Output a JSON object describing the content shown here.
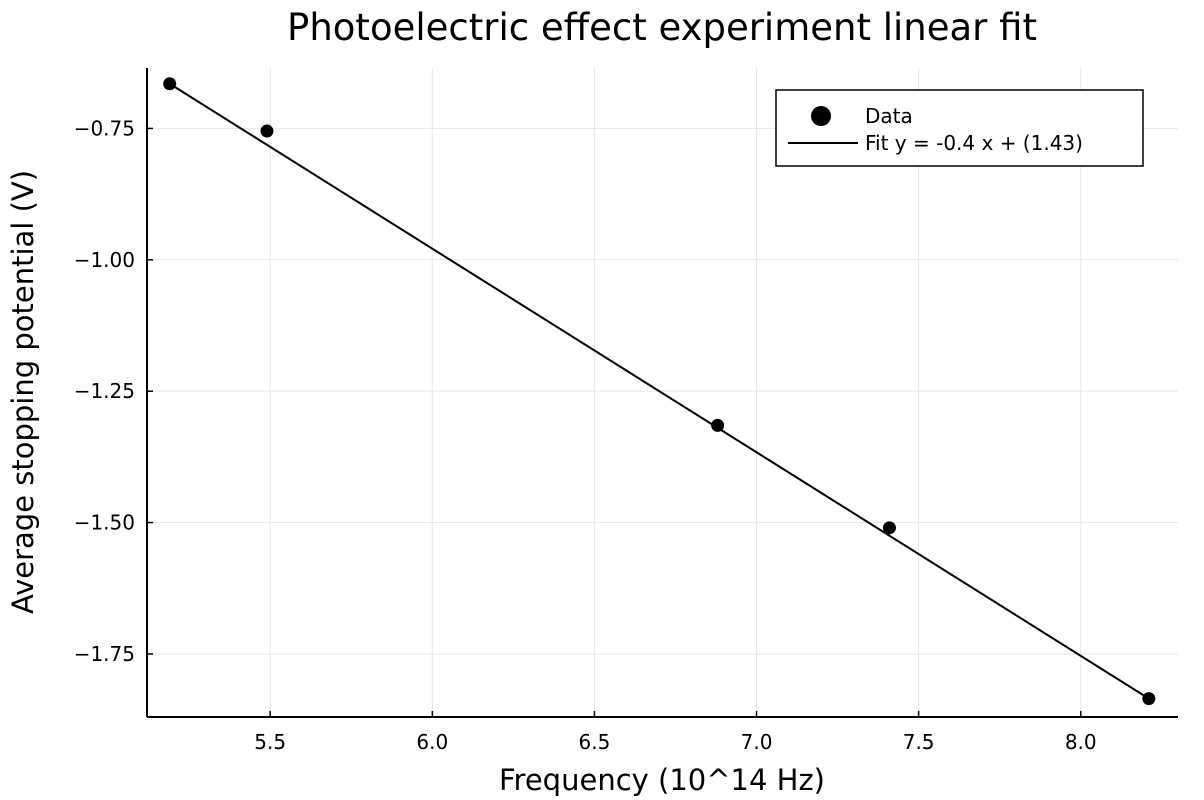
{
  "chart_data": {
    "type": "scatter",
    "title": "Photoelectric effect experiment linear fit",
    "xlabel": "Frequency (10^14 Hz)",
    "ylabel": "Average stopping potential (V)",
    "xlim": [
      5.12,
      8.3
    ],
    "ylim": [
      -1.87,
      -0.635
    ],
    "xticks": [
      5.5,
      6.0,
      6.5,
      7.0,
      7.5,
      8.0
    ],
    "xtick_labels": [
      "5.5",
      "6.0",
      "6.5",
      "7.0",
      "7.5",
      "8.0"
    ],
    "yticks": [
      -0.75,
      -1.0,
      -1.25,
      -1.5,
      -1.75
    ],
    "ytick_labels": [
      "−0.75",
      "−1.00",
      "−1.25",
      "−1.50",
      "−1.75"
    ],
    "grid": true,
    "legend_position": "top-right",
    "series": [
      {
        "name": "Data",
        "kind": "scatter",
        "color": "#000000",
        "x": [
          5.19,
          5.49,
          6.88,
          7.41,
          8.21
        ],
        "y": [
          -0.665,
          -0.755,
          -1.315,
          -1.51,
          -1.835
        ]
      },
      {
        "name": "Fit y = -0.4 x + (1.43)",
        "kind": "line",
        "color": "#000000",
        "x": [
          5.19,
          8.21
        ],
        "y": [
          -0.665,
          -1.835
        ]
      }
    ]
  }
}
